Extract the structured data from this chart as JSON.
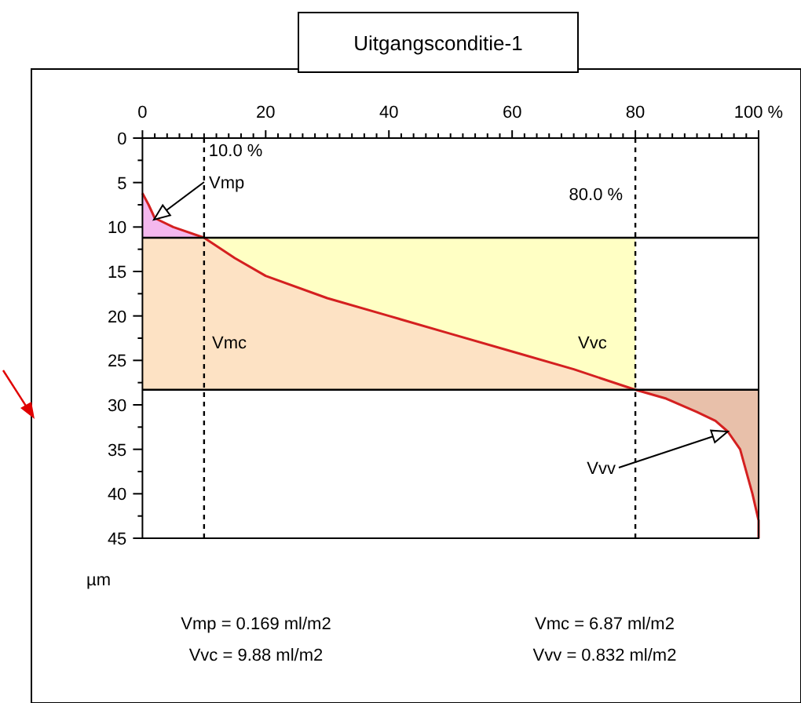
{
  "chart_data": {
    "type": "line",
    "title": "Uitgangsconditie-1",
    "ylabel": "µm",
    "xlim": [
      0,
      100
    ],
    "ylim": [
      45,
      0
    ],
    "xticks": [
      0,
      {
        "value": 2,
        "label": null
      },
      {
        "value": 4,
        "label": null
      },
      {
        "value": 6,
        "label": null
      },
      {
        "value": 8,
        "label": null
      },
      {
        "value": 10,
        "label": null
      },
      {
        "value": 12,
        "label": null
      },
      {
        "value": 14,
        "label": null
      },
      {
        "value": 16,
        "label": null
      },
      {
        "value": 18,
        "label": null
      },
      20,
      {
        "value": 22,
        "label": null
      },
      {
        "value": 24,
        "label": null
      },
      {
        "value": 26,
        "label": null
      },
      {
        "value": 28,
        "label": null
      },
      {
        "value": 30,
        "label": null
      },
      {
        "value": 32,
        "label": null
      },
      {
        "value": 34,
        "label": null
      },
      {
        "value": 36,
        "label": null
      },
      {
        "value": 38,
        "label": null
      },
      40,
      {
        "value": 42,
        "label": null
      },
      {
        "value": 44,
        "label": null
      },
      {
        "value": 46,
        "label": null
      },
      {
        "value": 48,
        "label": null
      },
      {
        "value": 50,
        "label": null
      },
      {
        "value": 52,
        "label": null
      },
      {
        "value": 54,
        "label": null
      },
      {
        "value": 56,
        "label": null
      },
      {
        "value": 58,
        "label": null
      },
      60,
      {
        "value": 62,
        "label": null
      },
      {
        "value": 64,
        "label": null
      },
      {
        "value": 66,
        "label": null
      },
      {
        "value": 68,
        "label": null
      },
      {
        "value": 70,
        "label": null
      },
      {
        "value": 72,
        "label": null
      },
      {
        "value": 74,
        "label": null
      },
      {
        "value": 76,
        "label": null
      },
      {
        "value": 78,
        "label": null
      },
      80,
      {
        "value": 82,
        "label": null
      },
      {
        "value": 84,
        "label": null
      },
      {
        "value": 86,
        "label": null
      },
      {
        "value": 88,
        "label": null
      },
      {
        "value": 90,
        "label": null
      },
      {
        "value": 92,
        "label": null
      },
      {
        "value": 94,
        "label": null
      },
      {
        "value": 96,
        "label": null
      },
      {
        "value": 98,
        "label": null
      },
      {
        "value": 100,
        "label": "100 %"
      }
    ],
    "yticks": [
      0,
      {
        "value": 2.5,
        "label": null
      },
      5,
      {
        "value": 7.5,
        "label": null
      },
      10,
      {
        "value": 12.5,
        "label": null
      },
      15,
      {
        "value": 17.5,
        "label": null
      },
      20,
      {
        "value": 22.5,
        "label": null
      },
      25,
      {
        "value": 27.5,
        "label": null
      },
      30,
      {
        "value": 32.5,
        "label": null
      },
      35,
      {
        "value": 37.5,
        "label": null
      },
      40,
      {
        "value": 42.5,
        "label": null
      },
      45
    ],
    "grid": false,
    "marker": "none",
    "line_style": "solid",
    "series": [
      {
        "type": "area",
        "color": "#f4b8ee",
        "x": [
          0,
          1,
          2,
          5,
          10,
          0
        ],
        "values": [
          6.2,
          7.5,
          9,
          10,
          11.2,
          11.2
        ]
      },
      {
        "type": "area",
        "color": "#fde2c4",
        "x": [
          0,
          10,
          15,
          20,
          30,
          40,
          50,
          60,
          70,
          80,
          0
        ],
        "values": [
          11.2,
          11.2,
          13.5,
          15.5,
          18,
          20,
          22,
          24,
          26,
          28.3,
          28.3
        ]
      },
      {
        "type": "area",
        "color": "#ffffc4",
        "x": [
          10,
          15,
          20,
          30,
          40,
          50,
          60,
          70,
          80,
          80
        ],
        "values": [
          11.2,
          13.5,
          15.5,
          18,
          20,
          22,
          24,
          26,
          28.3,
          11.2
        ]
      },
      {
        "type": "area",
        "color": "#e8c0aa",
        "x": [
          80,
          85,
          90,
          93,
          95,
          97,
          99,
          100,
          100,
          100
        ],
        "values": [
          28.3,
          29.3,
          30.8,
          31.8,
          33,
          35,
          40,
          43,
          45,
          28.3
        ]
      },
      {
        "color": "#d42020",
        "x": [
          0,
          1,
          2,
          5,
          10,
          15,
          20,
          30,
          40,
          50,
          60,
          70,
          80,
          85,
          90,
          93,
          95,
          97,
          99,
          100,
          100
        ],
        "values": [
          6.2,
          7.5,
          9,
          10,
          11.2,
          13.5,
          15.5,
          18,
          20,
          22,
          24,
          26,
          28.3,
          29.3,
          30.8,
          31.8,
          33,
          35,
          40,
          43,
          45
        ]
      }
    ],
    "ref_lines": [
      {
        "axis": "y",
        "value": 11.2,
        "color": "#000000",
        "line_style": "solid"
      },
      {
        "axis": "y",
        "value": 28.3,
        "color": "#000000",
        "line_style": "solid"
      },
      {
        "axis": "x",
        "value": 10,
        "label": "10.0 %",
        "color": "#000000",
        "line_style": "dashed"
      },
      {
        "axis": "x",
        "value": 80,
        "label": "80.0 %",
        "color": "#000000",
        "line_style": "dashed"
      }
    ],
    "annotations": [
      "Vmp",
      "Vmc",
      "Vvc",
      {
        "text": "Vvv",
        "x": 95,
        "y": 33
      },
      "Vmp = 0.169 ml/m2",
      "Vmc = 6.87 ml/m2",
      "Vvc = 9.88 ml/m2",
      "Vvv = 0.832 ml/m2"
    ]
  }
}
